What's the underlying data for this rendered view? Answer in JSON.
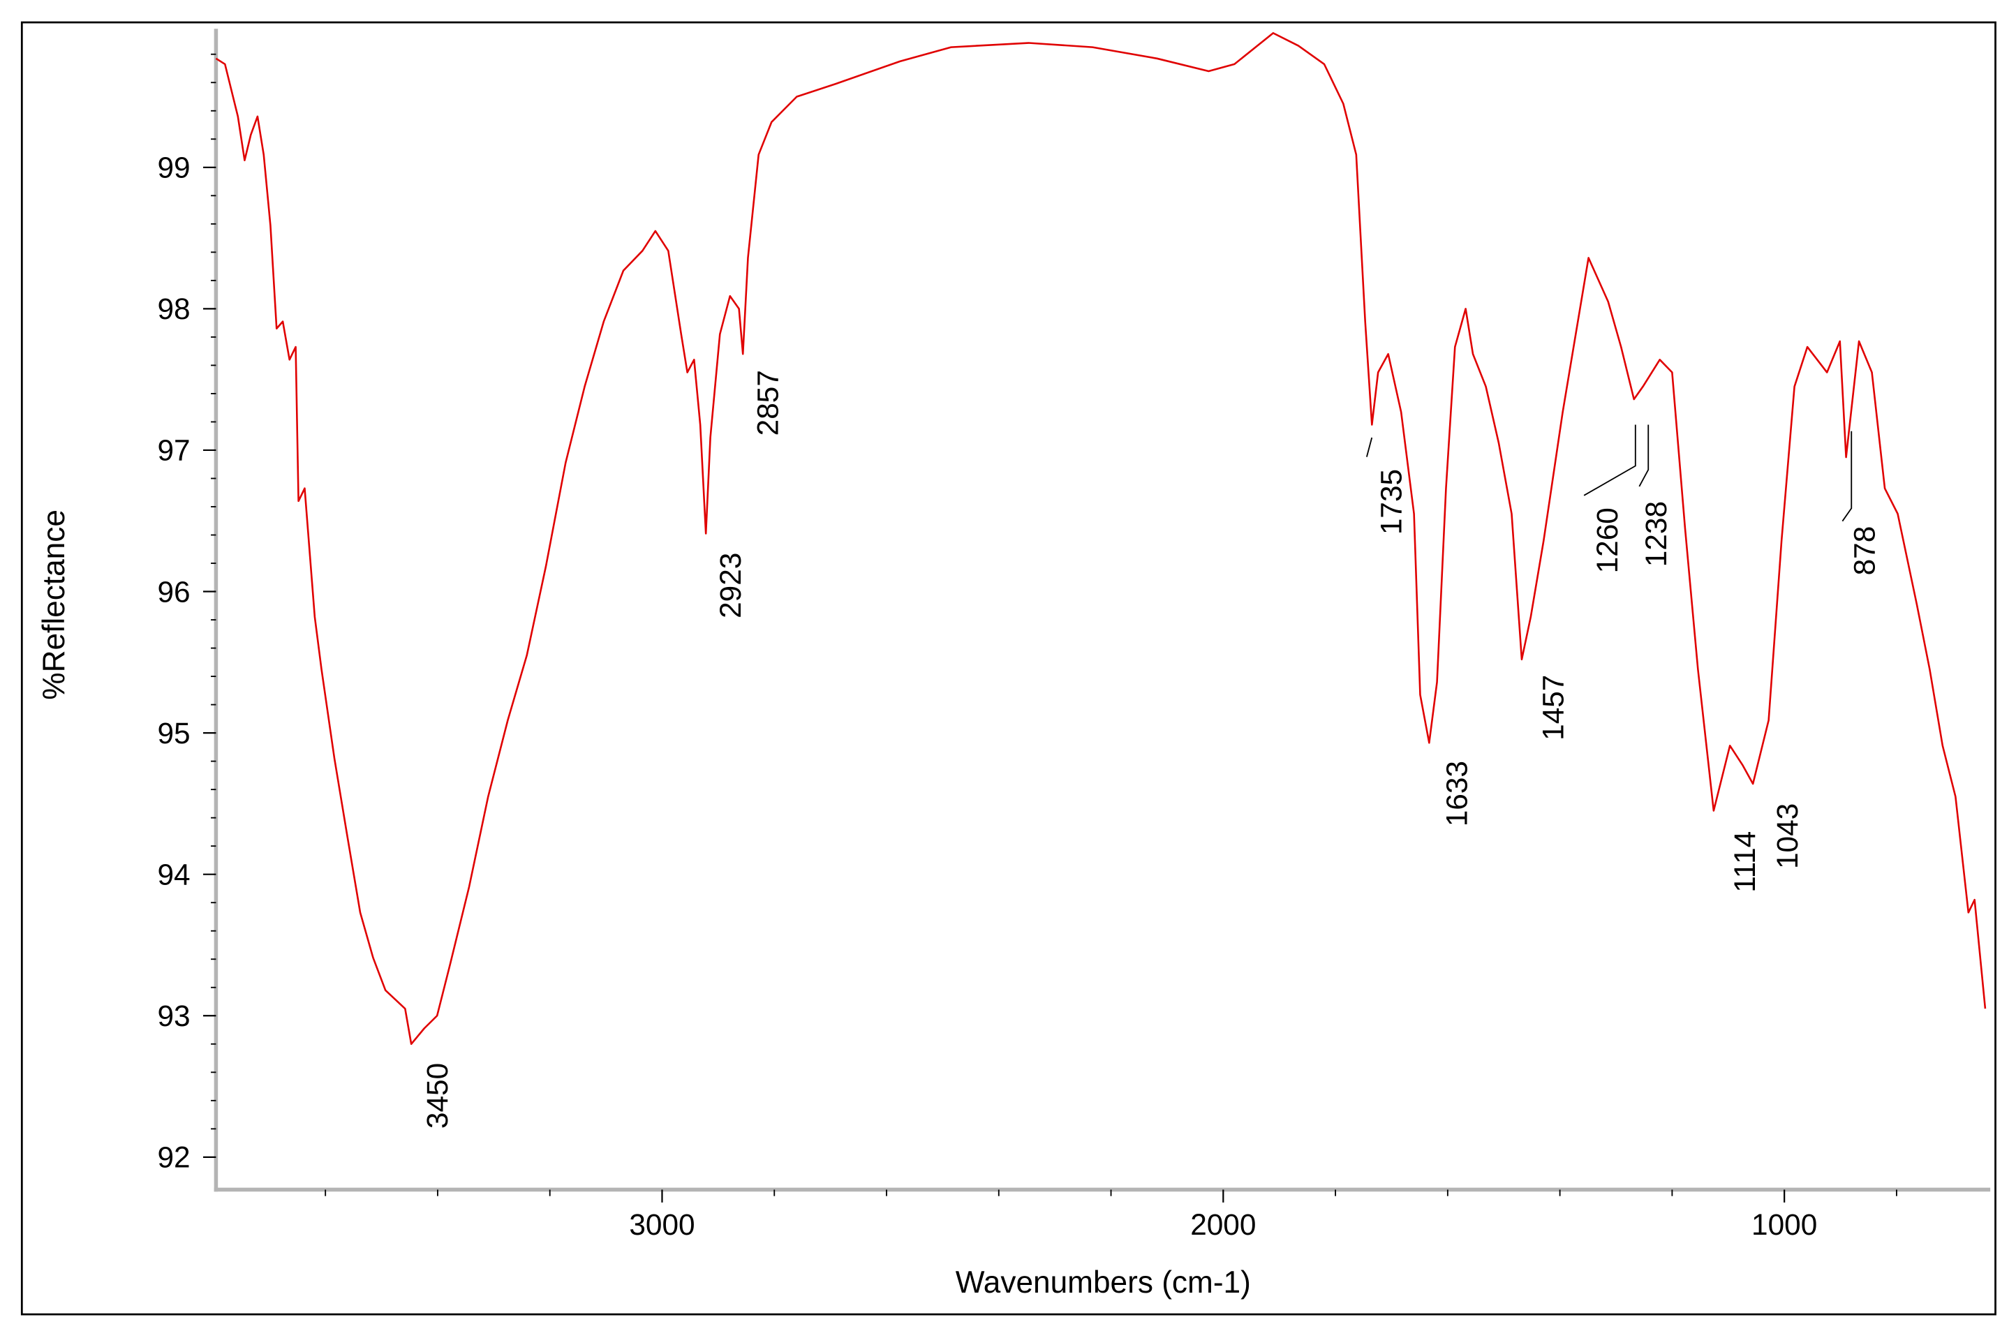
{
  "chart_data": {
    "type": "line",
    "x_label": "Wavenumbers (cm-1)",
    "y_label": "%Reflectance",
    "color": "#e00000",
    "xlim": [
      3795,
      633
    ],
    "ylim": [
      91.77,
      99.98
    ],
    "xticks": [
      3000,
      2000,
      1000
    ],
    "x_minor_ticks": [
      3600,
      3400,
      3200,
      2800,
      2600,
      2400,
      2200,
      1800,
      1600,
      1400,
      1200,
      800
    ],
    "yticks": [
      92,
      93,
      94,
      95,
      96,
      97,
      98,
      99
    ],
    "y_minor_ticks": [
      92.2,
      92.4,
      92.6,
      92.8,
      93.2,
      93.4,
      93.6,
      93.8,
      94.2,
      94.4,
      94.6,
      94.8,
      95.2,
      95.4,
      95.6,
      95.8,
      96.2,
      96.4,
      96.6,
      96.8,
      97.2,
      97.4,
      97.6,
      97.8,
      98.2,
      98.4,
      98.6,
      98.8,
      99.2,
      99.4,
      99.6,
      99.8
    ],
    "x": [
      3795,
      3779,
      3756,
      3744,
      3733,
      3721,
      3710,
      3698,
      3687,
      3676,
      3664,
      3653,
      3648,
      3637,
      3619,
      3607,
      3584,
      3561,
      3538,
      3515,
      3493,
      3458,
      3447,
      3424,
      3401,
      3378,
      3344,
      3310,
      3275,
      3241,
      3207,
      3172,
      3138,
      3104,
      3069,
      3035,
      3012,
      2989,
      2966,
      2955,
      2943,
      2932,
      2922,
      2914,
      2897,
      2879,
      2863,
      2856,
      2847,
      2828,
      2805,
      2760,
      2691,
      2576,
      2485,
      2347,
      2233,
      2118,
      2026,
      1980,
      1911,
      1866,
      1820,
      1786,
      1763,
      1747,
      1735,
      1724,
      1706,
      1683,
      1660,
      1649,
      1633,
      1619,
      1603,
      1587,
      1568,
      1555,
      1532,
      1509,
      1486,
      1468,
      1452,
      1429,
      1395,
      1349,
      1314,
      1291,
      1268,
      1252,
      1222,
      1200,
      1177,
      1154,
      1126,
      1097,
      1074,
      1056,
      1028,
      1005,
      982,
      959,
      924,
      901,
      890,
      867,
      844,
      821,
      798,
      764,
      741,
      718,
      695,
      672,
      661,
      642
    ],
    "values": [
      99.77,
      99.73,
      99.36,
      99.05,
      99.23,
      99.36,
      99.09,
      98.59,
      97.86,
      97.91,
      97.64,
      97.73,
      96.64,
      96.73,
      95.82,
      95.45,
      94.82,
      94.27,
      93.73,
      93.41,
      93.18,
      93.05,
      92.8,
      92.91,
      93.0,
      93.36,
      93.91,
      94.55,
      95.09,
      95.55,
      96.18,
      96.91,
      97.45,
      97.91,
      98.27,
      98.41,
      98.55,
      98.41,
      97.82,
      97.55,
      97.64,
      97.18,
      96.41,
      97.09,
      97.82,
      98.09,
      98.0,
      97.68,
      98.36,
      99.09,
      99.32,
      99.5,
      99.59,
      99.75,
      99.85,
      99.88,
      99.85,
      99.77,
      99.68,
      99.73,
      99.95,
      99.86,
      99.73,
      99.45,
      99.09,
      97.91,
      97.18,
      97.55,
      97.68,
      97.27,
      96.55,
      95.27,
      94.93,
      95.36,
      96.73,
      97.73,
      98.0,
      97.68,
      97.45,
      97.05,
      96.55,
      95.52,
      95.82,
      96.36,
      97.27,
      98.36,
      98.05,
      97.73,
      97.36,
      97.45,
      97.64,
      97.55,
      96.45,
      95.45,
      94.45,
      94.91,
      94.77,
      94.64,
      95.09,
      96.36,
      97.45,
      97.73,
      97.55,
      97.77,
      96.95,
      97.77,
      97.55,
      96.73,
      96.55,
      95.91,
      95.45,
      94.91,
      94.55,
      93.73,
      93.82,
      93.05
    ],
    "annotations": [
      "3450",
      "2923",
      "2857",
      "1735",
      "1633",
      "1457",
      "1260",
      "1238",
      "1114",
      "1043",
      "878"
    ]
  }
}
